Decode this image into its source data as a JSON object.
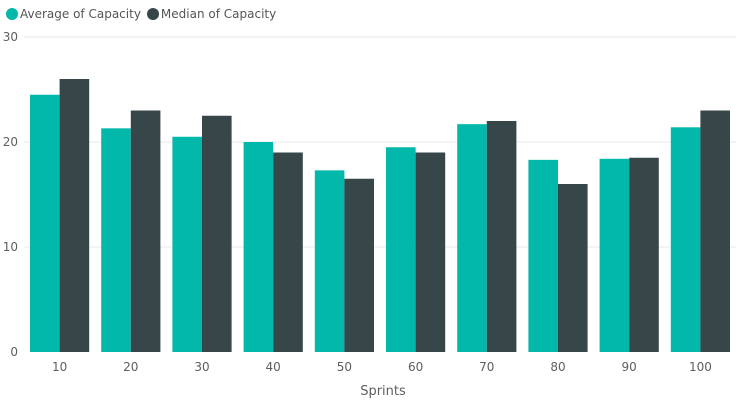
{
  "chart_data": {
    "type": "bar",
    "title": "",
    "xlabel": "Sprints",
    "ylabel": "",
    "categories": [
      "10",
      "20",
      "30",
      "40",
      "50",
      "60",
      "70",
      "80",
      "90",
      "100"
    ],
    "series": [
      {
        "name": "Average of Capacity",
        "color": "#01B8AA",
        "values": [
          24.5,
          21.3,
          20.5,
          20.0,
          17.3,
          19.5,
          21.7,
          18.3,
          18.4,
          21.4
        ]
      },
      {
        "name": "Median of Capacity",
        "color": "#374649",
        "values": [
          26.0,
          23.0,
          22.5,
          19.0,
          16.5,
          19.0,
          22.0,
          16.0,
          18.5,
          23.0
        ]
      }
    ],
    "ylim": [
      0,
      30
    ],
    "yticks": [
      "0",
      "10",
      "20",
      "30"
    ],
    "grid": true,
    "legend_position": "top-left"
  }
}
